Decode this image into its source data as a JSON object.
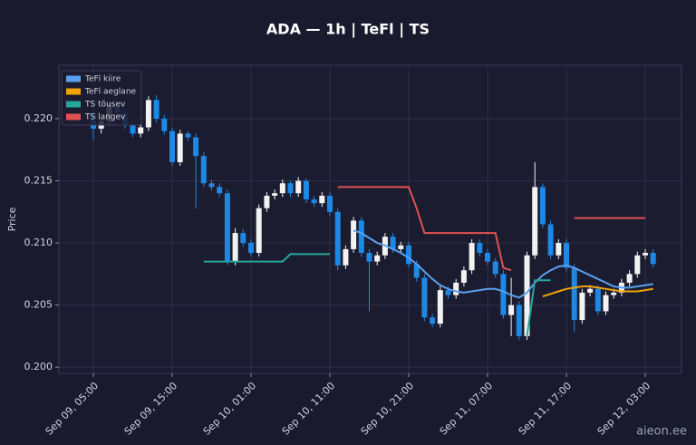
{
  "chart_data": {
    "type": "candlestick",
    "title": "ADA — 1h  |  TeFl  |  TS",
    "y_label": "Price",
    "watermark": "aieon.ee",
    "categories": [
      "Sep 09, 05:00",
      null,
      null,
      null,
      null,
      null,
      null,
      null,
      null,
      null,
      "Sep 09, 15:00",
      null,
      null,
      null,
      null,
      null,
      null,
      null,
      null,
      null,
      "Sep 10, 01:00",
      null,
      null,
      null,
      null,
      null,
      null,
      null,
      null,
      null,
      "Sep 10, 11:00",
      null,
      null,
      null,
      null,
      null,
      null,
      null,
      null,
      null,
      "Sep 10, 21:00",
      null,
      null,
      null,
      null,
      null,
      null,
      null,
      null,
      null,
      "Sep 11, 07:00",
      null,
      null,
      null,
      null,
      null,
      null,
      null,
      null,
      null,
      "Sep 11, 17:00",
      null,
      null,
      null,
      null,
      null,
      null,
      null,
      null,
      null,
      "Sep 12, 03:00",
      null
    ],
    "open": [
      0.2205,
      0.2192,
      0.2198,
      0.221,
      0.2205,
      0.2195,
      0.2188,
      0.2193,
      0.2215,
      0.22,
      0.219,
      0.2165,
      0.2188,
      0.2185,
      0.217,
      0.2148,
      0.2145,
      0.214,
      0.2085,
      0.2108,
      0.21,
      0.2092,
      0.2128,
      0.2138,
      0.214,
      0.2148,
      0.214,
      0.215,
      0.2135,
      0.2132,
      0.2138,
      0.2125,
      0.2082,
      0.2095,
      0.2118,
      0.2092,
      0.2085,
      0.209,
      0.2105,
      0.2095,
      0.2098,
      0.2083,
      0.2072,
      0.204,
      0.2035,
      0.2062,
      0.2058,
      0.2068,
      0.2078,
      0.21,
      0.2092,
      0.2085,
      0.2075,
      0.2042,
      0.205,
      0.2025,
      0.209,
      0.2145,
      0.2115,
      0.209,
      0.21,
      0.208,
      0.2038,
      0.206,
      0.2063,
      0.2045,
      0.2058,
      0.206,
      0.2068,
      0.2075,
      0.209,
      0.2092
    ],
    "high": [
      0.221,
      0.2201,
      0.2213,
      0.2213,
      0.2208,
      0.2198,
      0.2196,
      0.2218,
      0.2219,
      0.2203,
      0.2193,
      0.2191,
      0.219,
      0.2188,
      0.2173,
      0.2151,
      0.2148,
      0.2143,
      0.2112,
      0.2111,
      0.2103,
      0.2131,
      0.2141,
      0.2143,
      0.2151,
      0.215,
      0.2153,
      0.2152,
      0.2138,
      0.2141,
      0.2141,
      0.2128,
      0.2098,
      0.2121,
      0.2121,
      0.2095,
      0.2093,
      0.2108,
      0.2108,
      0.2101,
      0.2101,
      0.2086,
      0.2075,
      0.2043,
      0.2065,
      0.2065,
      0.2071,
      0.2081,
      0.2103,
      0.2103,
      0.2095,
      0.2088,
      0.2078,
      0.2072,
      0.2053,
      0.2093,
      0.2165,
      0.2148,
      0.2118,
      0.2103,
      0.2103,
      0.2083,
      0.2063,
      0.2066,
      0.2066,
      0.2061,
      0.2063,
      0.2071,
      0.2078,
      0.2093,
      0.2095,
      0.2095
    ],
    "low": [
      0.2183,
      0.2188,
      0.2195,
      0.2202,
      0.2192,
      0.2185,
      0.2185,
      0.219,
      0.2197,
      0.2187,
      0.2162,
      0.2162,
      0.2182,
      0.2128,
      0.2145,
      0.2142,
      0.2137,
      0.2082,
      0.2082,
      0.2097,
      0.2089,
      0.2089,
      0.2125,
      0.2135,
      0.2137,
      0.2137,
      0.2137,
      0.2132,
      0.2129,
      0.2129,
      0.2122,
      0.2078,
      0.2079,
      0.2092,
      0.2089,
      0.2045,
      0.2082,
      0.2087,
      0.2092,
      0.2092,
      0.208,
      0.2069,
      0.2037,
      0.2032,
      0.2032,
      0.2055,
      0.2055,
      0.2065,
      0.2075,
      0.2089,
      0.2082,
      0.2072,
      0.2039,
      0.2025,
      0.2022,
      0.2022,
      0.2087,
      0.2112,
      0.2087,
      0.2087,
      0.2077,
      0.2028,
      0.2035,
      0.2057,
      0.2042,
      0.2042,
      0.2055,
      0.2057,
      0.2065,
      0.2072,
      0.2087,
      0.208
    ],
    "close": [
      0.2192,
      0.2198,
      0.221,
      0.2205,
      0.2195,
      0.2188,
      0.2193,
      0.2215,
      0.22,
      0.219,
      0.2165,
      0.2188,
      0.2185,
      0.217,
      0.2148,
      0.2145,
      0.214,
      0.2085,
      0.2108,
      0.21,
      0.2092,
      0.2128,
      0.2138,
      0.214,
      0.2148,
      0.214,
      0.215,
      0.2135,
      0.2132,
      0.2138,
      0.2125,
      0.2082,
      0.2095,
      0.2118,
      0.2092,
      0.2085,
      0.209,
      0.2105,
      0.2095,
      0.2098,
      0.2083,
      0.2072,
      0.204,
      0.2035,
      0.2062,
      0.2058,
      0.2068,
      0.2078,
      0.21,
      0.2092,
      0.2085,
      0.2075,
      0.2042,
      0.205,
      0.2025,
      0.209,
      0.2145,
      0.2115,
      0.209,
      0.21,
      0.208,
      0.2038,
      0.206,
      0.2063,
      0.2045,
      0.2058,
      0.206,
      0.2068,
      0.2075,
      0.209,
      0.2092,
      0.2083
    ],
    "up_color": "#f2f2f2",
    "down_color": "#1e88e5",
    "series": [
      {
        "name": "TeFl kiire",
        "color": "#5aa0f0",
        "values": [
          null,
          null,
          null,
          null,
          null,
          null,
          null,
          null,
          null,
          null,
          null,
          null,
          null,
          null,
          null,
          null,
          null,
          null,
          null,
          null,
          null,
          null,
          null,
          null,
          null,
          null,
          null,
          null,
          null,
          null,
          null,
          null,
          null,
          0.211,
          0.2108,
          0.2104,
          0.21,
          0.2098,
          0.2095,
          0.2092,
          0.2088,
          0.2083,
          0.2077,
          0.2071,
          0.2066,
          0.2063,
          0.2061,
          0.206,
          0.2061,
          0.2062,
          0.2063,
          0.2063,
          0.2061,
          0.2058,
          0.2056,
          0.206,
          0.2068,
          0.2074,
          0.2078,
          0.2081,
          0.2082,
          0.208,
          0.2077,
          0.2074,
          0.2071,
          0.2068,
          0.2065,
          0.2064,
          0.2064,
          0.2065,
          0.2066,
          0.2067
        ]
      },
      {
        "name": "TeFl aeglane",
        "color": "#f0a30a",
        "values": [
          null,
          null,
          null,
          null,
          null,
          null,
          null,
          null,
          null,
          null,
          null,
          null,
          null,
          null,
          null,
          null,
          null,
          null,
          null,
          null,
          null,
          null,
          null,
          null,
          null,
          null,
          null,
          null,
          null,
          null,
          null,
          null,
          null,
          null,
          null,
          null,
          null,
          null,
          null,
          null,
          null,
          null,
          null,
          null,
          null,
          null,
          null,
          null,
          null,
          null,
          null,
          null,
          null,
          null,
          null,
          null,
          null,
          0.2057,
          0.2059,
          0.2061,
          0.2063,
          0.2064,
          0.2065,
          0.2065,
          0.2064,
          0.2063,
          0.2062,
          0.2061,
          0.2061,
          0.2061,
          0.2062,
          0.2063
        ]
      },
      {
        "name": "TS tõusev",
        "color": "#26a69a",
        "values": [
          null,
          null,
          null,
          null,
          null,
          null,
          null,
          null,
          null,
          null,
          null,
          null,
          null,
          null,
          0.2085,
          0.2085,
          0.2085,
          0.2085,
          0.2085,
          0.2085,
          0.2085,
          0.2085,
          0.2085,
          0.2085,
          0.2085,
          0.2091,
          0.2091,
          0.2091,
          0.2091,
          0.2091,
          0.2091,
          null,
          null,
          null,
          null,
          null,
          null,
          null,
          null,
          null,
          null,
          null,
          null,
          null,
          null,
          null,
          null,
          null,
          null,
          null,
          null,
          null,
          null,
          null,
          null,
          0.2025,
          0.207,
          0.207,
          0.207,
          null,
          null,
          null,
          null,
          null,
          null,
          null,
          null,
          null,
          null,
          null,
          null,
          null
        ]
      },
      {
        "name": "TS langev",
        "color": "#e05252",
        "values": [
          null,
          null,
          null,
          null,
          null,
          null,
          null,
          null,
          null,
          null,
          null,
          null,
          null,
          null,
          null,
          null,
          null,
          null,
          null,
          null,
          null,
          null,
          null,
          null,
          null,
          null,
          null,
          null,
          null,
          null,
          null,
          0.2145,
          0.2145,
          0.2145,
          0.2145,
          0.2145,
          0.2145,
          0.2145,
          0.2145,
          0.2145,
          0.2145,
          0.2128,
          0.2108,
          0.2108,
          0.2108,
          0.2108,
          0.2108,
          0.2108,
          0.2108,
          0.2108,
          0.2108,
          0.2108,
          0.208,
          0.2078,
          null,
          null,
          null,
          null,
          null,
          null,
          null,
          0.212,
          0.212,
          0.212,
          0.212,
          0.212,
          0.212,
          0.212,
          0.212,
          0.212,
          0.212,
          null
        ]
      }
    ],
    "ylim": [
      0.1995,
      0.2243
    ],
    "yticks": [
      {
        "value": 0.2,
        "label": "0.200"
      },
      0.205,
      {
        "value": 0.21,
        "label": "0.210"
      },
      0.215,
      {
        "value": 0.22,
        "label": "0.220"
      }
    ],
    "grid": true,
    "legend": "upper left"
  }
}
